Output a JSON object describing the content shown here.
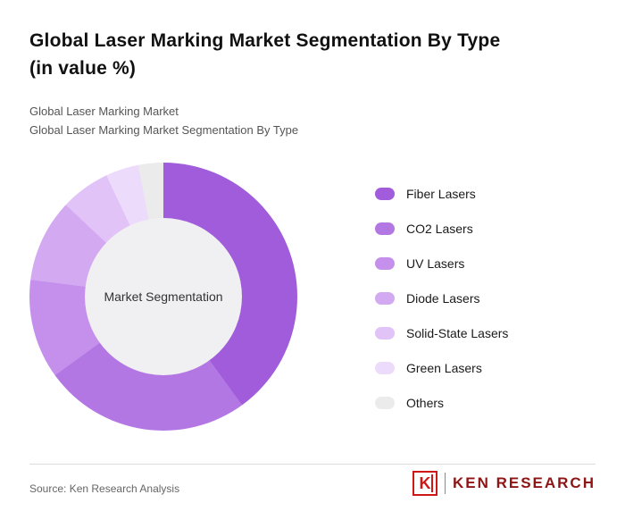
{
  "header": {
    "title_line1": "Global Laser Marking Market Segmentation By Type",
    "title_line2": "(in value %)",
    "subtitle_line1": "Global Laser Marking Market",
    "subtitle_line2": "Global Laser Marking Market Segmentation By Type"
  },
  "chart_data": {
    "type": "pie",
    "donut": true,
    "title": "Global Laser Marking Market Segmentation By Type (in value %)",
    "center_label": "Market Segmentation",
    "labels": [
      "Fiber Lasers",
      "CO2 Lasers",
      "UV Lasers",
      "Diode Lasers",
      "Solid-State Lasers",
      "Green Lasers",
      "Others"
    ],
    "values": [
      40,
      25,
      12,
      10,
      6,
      4,
      3
    ],
    "colors": [
      "#a05cda",
      "#b377e4",
      "#c490ec",
      "#d3a9f2",
      "#e1c3f7",
      "#ecdbfb",
      "#ebebeb"
    ],
    "legend_position": "right",
    "center_color": "#f0eff1"
  },
  "footer": {
    "source": "Source: Ken Research Analysis",
    "logo_letter": "K",
    "logo_text": "KEN RESEARCH",
    "logo_color": "#cf1717"
  }
}
